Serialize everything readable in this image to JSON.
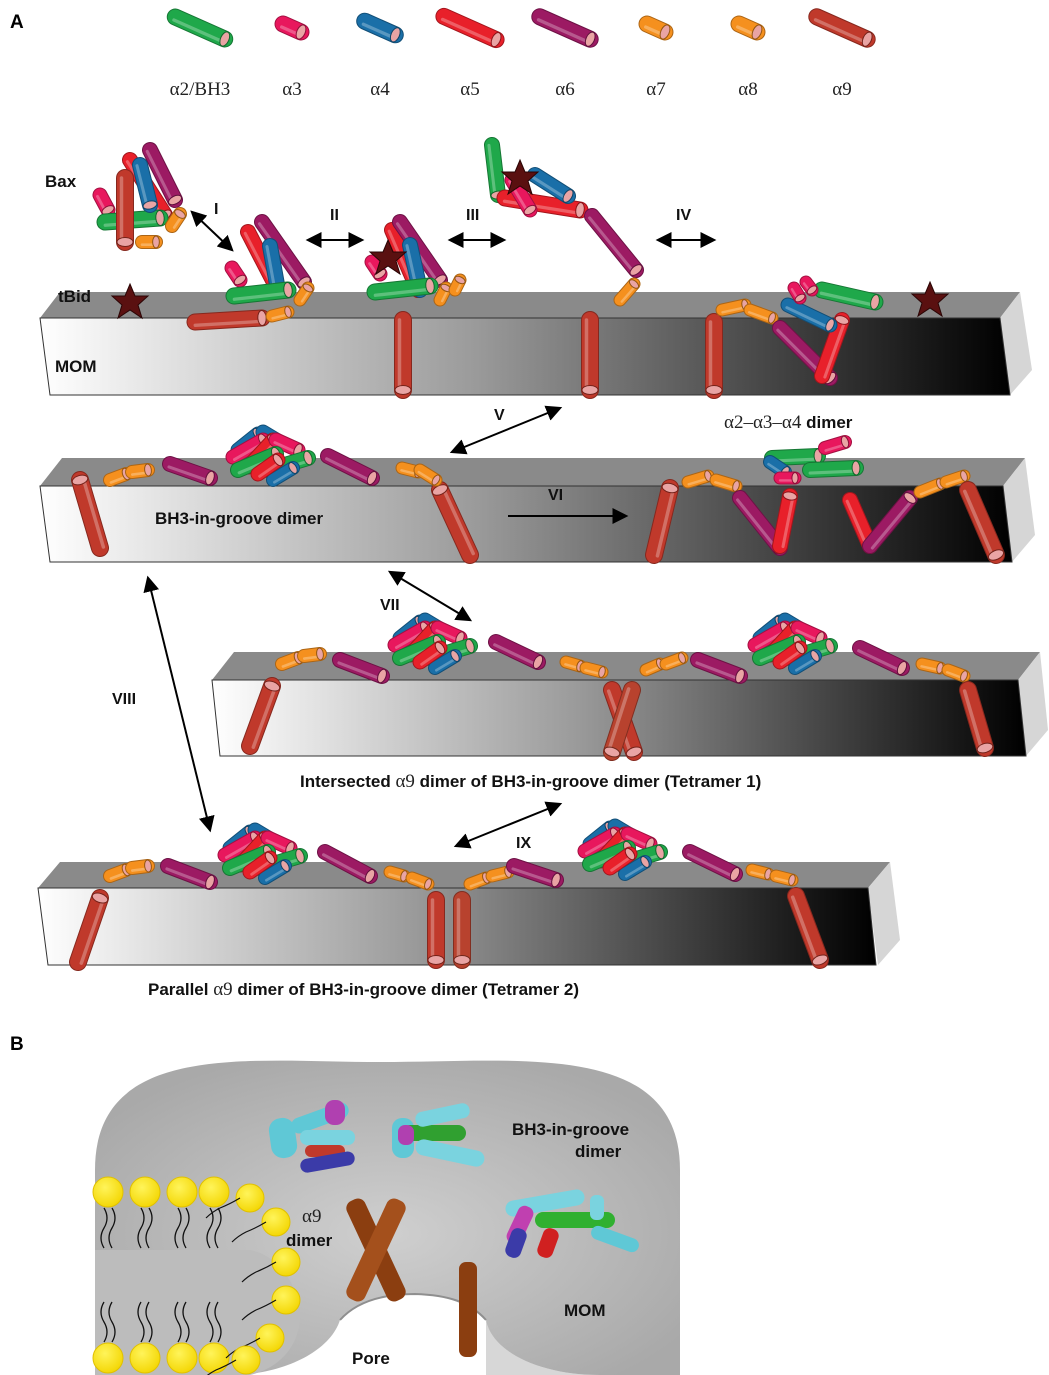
{
  "panels": {
    "a": "A",
    "b": "B"
  },
  "legend": [
    {
      "label": "α2/BH3",
      "color": "#1fa84a"
    },
    {
      "label": "α3",
      "color": "#e8175d"
    },
    {
      "label": "α4",
      "color": "#1a6fa8"
    },
    {
      "label": "α5",
      "color": "#e8202a"
    },
    {
      "label": "α6",
      "color": "#9c1a63"
    },
    {
      "label": "α7",
      "color": "#f5901e"
    },
    {
      "label": "α8",
      "color": "#f5901e"
    },
    {
      "label": "α9",
      "color": "#c0392b"
    }
  ],
  "labels": {
    "bax": "Bax",
    "tbid": "tBid",
    "mom": "MOM",
    "dimer_234_prefix": "α2–α3–α4",
    "dimer_234_suffix": " dimer",
    "bh3_groove": "BH3-in-groove dimer",
    "tetramer1_prefix": "Intersected ",
    "tetramer1_alpha": "α9",
    "tetramer1_suffix": " dimer of BH3-in-groove dimer (Tetramer 1)",
    "tetramer2_prefix": "Parallel ",
    "tetramer2_alpha": "α9",
    "tetramer2_suffix": " dimer of BH3-in-groove dimer (Tetramer 2)",
    "b_groove_1": "BH3-in-groove",
    "b_groove_2": "dimer",
    "b_alpha9": "α9",
    "b_dimer": "dimer",
    "b_mom": "MOM",
    "b_pore": "Pore"
  },
  "steps": [
    "I",
    "II",
    "III",
    "IV",
    "V",
    "VI",
    "VII",
    "VIII",
    "IX"
  ]
}
